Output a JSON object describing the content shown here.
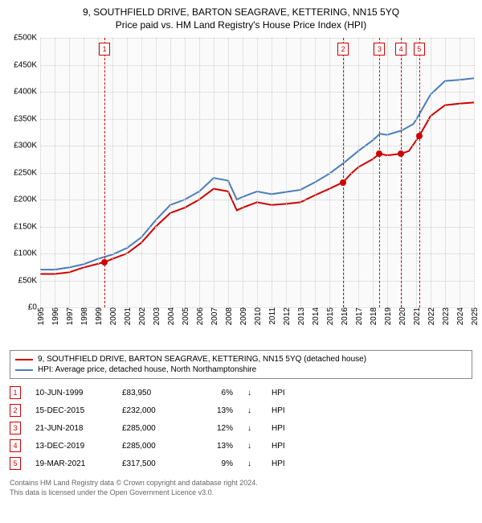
{
  "title": {
    "main": "9, SOUTHFIELD DRIVE, BARTON SEAGRAVE, KETTERING, NN15 5YQ",
    "sub": "Price paid vs. HM Land Registry's House Price Index (HPI)"
  },
  "chart": {
    "type": "line",
    "background_color": "#fafafa",
    "grid_color": "#cccccc",
    "y": {
      "min": 0,
      "max": 500000,
      "step": 50000,
      "ticks": [
        "£0",
        "£50K",
        "£100K",
        "£150K",
        "£200K",
        "£250K",
        "£300K",
        "£350K",
        "£400K",
        "£450K",
        "£500K"
      ]
    },
    "x": {
      "min": 1995,
      "max": 2025,
      "step": 1,
      "ticks": [
        "1995",
        "1996",
        "1997",
        "1998",
        "1999",
        "2000",
        "2001",
        "2002",
        "2003",
        "2004",
        "2005",
        "2006",
        "2007",
        "2008",
        "2009",
        "2010",
        "2011",
        "2012",
        "2013",
        "2014",
        "2015",
        "2016",
        "2017",
        "2018",
        "2019",
        "2020",
        "2021",
        "2022",
        "2023",
        "2024",
        "2025"
      ]
    },
    "series": [
      {
        "name": "property",
        "label": "9, SOUTHFIELD DRIVE, BARTON SEAGRAVE, KETTERING, NN15 5YQ (detached house)",
        "color": "#d00000",
        "line_width": 2,
        "data": [
          [
            1995,
            62000
          ],
          [
            1996,
            62000
          ],
          [
            1997,
            65000
          ],
          [
            1998,
            74000
          ],
          [
            1999.45,
            83950
          ],
          [
            2000,
            90000
          ],
          [
            2001,
            100000
          ],
          [
            2002,
            120000
          ],
          [
            2003,
            150000
          ],
          [
            2004,
            175000
          ],
          [
            2005,
            185000
          ],
          [
            2006,
            200000
          ],
          [
            2007,
            220000
          ],
          [
            2008,
            215000
          ],
          [
            2008.6,
            180000
          ],
          [
            2009,
            185000
          ],
          [
            2010,
            195000
          ],
          [
            2011,
            190000
          ],
          [
            2012,
            192000
          ],
          [
            2013,
            195000
          ],
          [
            2014,
            208000
          ],
          [
            2015,
            220000
          ],
          [
            2015.95,
            232000
          ],
          [
            2016.5,
            248000
          ],
          [
            2017,
            260000
          ],
          [
            2018,
            275000
          ],
          [
            2018.47,
            285000
          ],
          [
            2019,
            282000
          ],
          [
            2019.95,
            285000
          ],
          [
            2020.5,
            290000
          ],
          [
            2021.21,
            317500
          ],
          [
            2022,
            355000
          ],
          [
            2023,
            375000
          ],
          [
            2024,
            378000
          ],
          [
            2025,
            380000
          ]
        ]
      },
      {
        "name": "hpi",
        "label": "HPI: Average price, detached house, North Northamptonshire",
        "color": "#4a7ebb",
        "line_width": 2,
        "data": [
          [
            1995,
            70000
          ],
          [
            1996,
            70000
          ],
          [
            1997,
            74000
          ],
          [
            1998,
            80000
          ],
          [
            1999,
            90000
          ],
          [
            2000,
            98000
          ],
          [
            2001,
            110000
          ],
          [
            2002,
            130000
          ],
          [
            2003,
            162000
          ],
          [
            2004,
            190000
          ],
          [
            2005,
            200000
          ],
          [
            2006,
            215000
          ],
          [
            2007,
            240000
          ],
          [
            2008,
            235000
          ],
          [
            2008.6,
            200000
          ],
          [
            2009,
            205000
          ],
          [
            2010,
            215000
          ],
          [
            2011,
            210000
          ],
          [
            2012,
            214000
          ],
          [
            2013,
            218000
          ],
          [
            2014,
            232000
          ],
          [
            2015,
            248000
          ],
          [
            2016,
            268000
          ],
          [
            2017,
            290000
          ],
          [
            2018,
            310000
          ],
          [
            2018.5,
            322000
          ],
          [
            2019,
            320000
          ],
          [
            2020,
            328000
          ],
          [
            2020.8,
            340000
          ],
          [
            2021,
            348000
          ],
          [
            2022,
            395000
          ],
          [
            2023,
            420000
          ],
          [
            2024,
            422000
          ],
          [
            2025,
            425000
          ]
        ]
      }
    ],
    "transactions": [
      {
        "n": "1",
        "year": 1999.45,
        "value": 83950
      },
      {
        "n": "2",
        "year": 2015.95,
        "value": 232000
      },
      {
        "n": "3",
        "year": 2018.47,
        "value": 285000
      },
      {
        "n": "4",
        "year": 2019.95,
        "value": 285000
      },
      {
        "n": "5",
        "year": 2021.21,
        "value": 317500
      }
    ],
    "marker_box_color": "#d00000"
  },
  "legend": {
    "items": [
      {
        "color": "#d00000",
        "label": "9, SOUTHFIELD DRIVE, BARTON SEAGRAVE, KETTERING, NN15 5YQ (detached house)"
      },
      {
        "color": "#4a7ebb",
        "label": "HPI: Average price, detached house, North Northamptonshire"
      }
    ]
  },
  "transactions_table": {
    "rows": [
      {
        "n": "1",
        "date": "10-JUN-1999",
        "price": "£83,950",
        "pct": "6%",
        "arrow": "↓",
        "hpi": "HPI"
      },
      {
        "n": "2",
        "date": "15-DEC-2015",
        "price": "£232,000",
        "pct": "13%",
        "arrow": "↓",
        "hpi": "HPI"
      },
      {
        "n": "3",
        "date": "21-JUN-2018",
        "price": "£285,000",
        "pct": "12%",
        "arrow": "↓",
        "hpi": "HPI"
      },
      {
        "n": "4",
        "date": "13-DEC-2019",
        "price": "£285,000",
        "pct": "13%",
        "arrow": "↓",
        "hpi": "HPI"
      },
      {
        "n": "5",
        "date": "19-MAR-2021",
        "price": "£317,500",
        "pct": "9%",
        "arrow": "↓",
        "hpi": "HPI"
      }
    ]
  },
  "footer": {
    "line1": "Contains HM Land Registry data © Crown copyright and database right 2024.",
    "line2": "This data is licensed under the Open Government Licence v3.0."
  }
}
